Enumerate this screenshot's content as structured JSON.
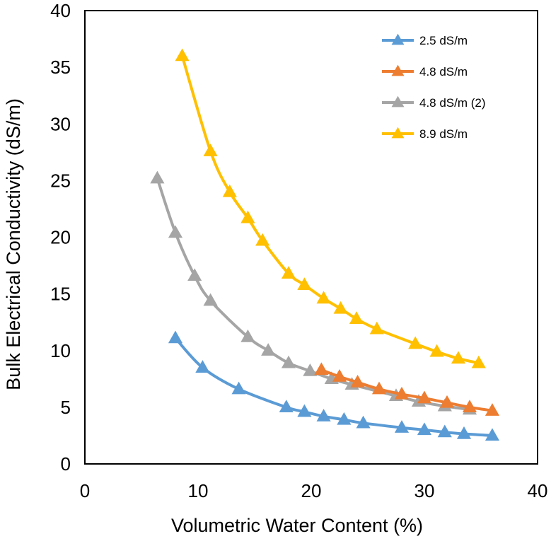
{
  "chart_data": {
    "type": "line",
    "title": "",
    "xlabel": "Volumetric Water Content (%)",
    "ylabel": "Bulk Electrical Conductivity (dS/m)",
    "xlim": [
      0,
      40
    ],
    "ylim": [
      0,
      40
    ],
    "x_ticks": [
      0,
      10,
      20,
      30,
      40
    ],
    "y_ticks": [
      0,
      5,
      10,
      15,
      20,
      25,
      30,
      35,
      40
    ],
    "grid": false,
    "legend_position": "top-right",
    "marker": "triangle",
    "series": [
      {
        "name": "2.5 dS/m",
        "color": "#5B9BD5",
        "points": [
          [
            8.0,
            11.1
          ],
          [
            10.4,
            8.5
          ],
          [
            13.6,
            6.6
          ],
          [
            17.8,
            5.0
          ],
          [
            19.4,
            4.6
          ],
          [
            21.1,
            4.2
          ],
          [
            22.9,
            3.9
          ],
          [
            24.6,
            3.6
          ],
          [
            28.0,
            3.2
          ],
          [
            30.0,
            3.0
          ],
          [
            31.8,
            2.8
          ],
          [
            33.5,
            2.65
          ],
          [
            36.0,
            2.5
          ]
        ]
      },
      {
        "name": "4.8 dS/m",
        "color": "#ED7D31",
        "points": [
          [
            20.9,
            8.3
          ],
          [
            22.5,
            7.7
          ],
          [
            24.1,
            7.2
          ],
          [
            26.0,
            6.6
          ],
          [
            28.0,
            6.15
          ],
          [
            30.0,
            5.8
          ],
          [
            32.0,
            5.4
          ],
          [
            34.0,
            5.0
          ],
          [
            36.0,
            4.7
          ]
        ]
      },
      {
        "name": "4.8 dS/m (2)",
        "color": "#A5A5A5",
        "points": [
          [
            6.4,
            25.2
          ],
          [
            8.0,
            20.4
          ],
          [
            9.7,
            16.6
          ],
          [
            11.1,
            14.4
          ],
          [
            14.4,
            11.2
          ],
          [
            16.2,
            10.0
          ],
          [
            18.0,
            8.9
          ],
          [
            19.9,
            8.2
          ],
          [
            21.8,
            7.5
          ],
          [
            23.6,
            7.0
          ],
          [
            27.5,
            6.0
          ],
          [
            29.5,
            5.5
          ],
          [
            31.8,
            5.1
          ],
          [
            34.0,
            4.8
          ]
        ]
      },
      {
        "name": "8.9 dS/m",
        "color": "#FFC000",
        "points": [
          [
            8.6,
            36.0
          ],
          [
            11.1,
            27.6
          ],
          [
            12.8,
            24.0
          ],
          [
            14.4,
            21.7
          ],
          [
            15.7,
            19.7
          ],
          [
            18.0,
            16.8
          ],
          [
            19.4,
            15.8
          ],
          [
            21.1,
            14.6
          ],
          [
            22.6,
            13.7
          ],
          [
            24.0,
            12.8
          ],
          [
            25.8,
            11.9
          ],
          [
            29.2,
            10.6
          ],
          [
            31.1,
            9.9
          ],
          [
            33.0,
            9.3
          ],
          [
            34.8,
            8.9
          ]
        ]
      }
    ]
  }
}
